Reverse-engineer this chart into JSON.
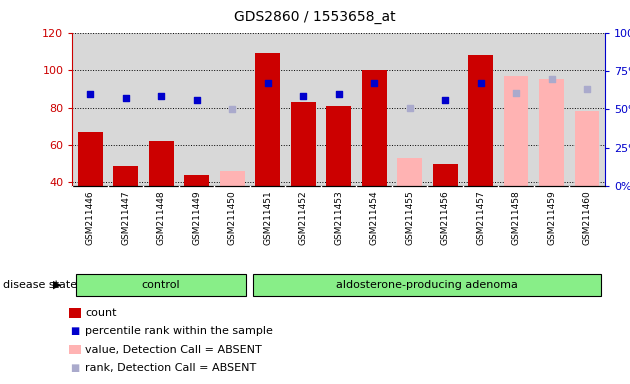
{
  "title": "GDS2860 / 1553658_at",
  "samples": [
    "GSM211446",
    "GSM211447",
    "GSM211448",
    "GSM211449",
    "GSM211450",
    "GSM211451",
    "GSM211452",
    "GSM211453",
    "GSM211454",
    "GSM211455",
    "GSM211456",
    "GSM211457",
    "GSM211458",
    "GSM211459",
    "GSM211460"
  ],
  "count_values": [
    67,
    49,
    62,
    44,
    null,
    109,
    83,
    81,
    100,
    null,
    50,
    108,
    null,
    null,
    null
  ],
  "count_absent": [
    null,
    null,
    null,
    null,
    46,
    null,
    null,
    null,
    null,
    53,
    null,
    null,
    97,
    95,
    78
  ],
  "percentile_rank": [
    87,
    85,
    86,
    84,
    null,
    93,
    86,
    87,
    93,
    null,
    84,
    93,
    null,
    null,
    null
  ],
  "rank_absent": [
    null,
    null,
    null,
    null,
    79,
    null,
    null,
    null,
    null,
    80,
    null,
    null,
    88,
    95,
    90
  ],
  "ylim_left": [
    38,
    120
  ],
  "ylim_right": [
    0,
    100
  ],
  "yticks_left": [
    40,
    60,
    80,
    100,
    120
  ],
  "yticks_right": [
    0,
    25,
    50,
    75,
    100
  ],
  "bar_color_red": "#cc0000",
  "bar_color_pink": "#ffb3b3",
  "dot_color_blue": "#0000cc",
  "dot_color_lightblue": "#aaaacc",
  "group_color": "#88ee88",
  "left_axis_color": "#cc0000",
  "right_axis_color": "#0000cc",
  "legend_items": [
    "count",
    "percentile rank within the sample",
    "value, Detection Call = ABSENT",
    "rank, Detection Call = ABSENT"
  ],
  "legend_colors": [
    "#cc0000",
    "#0000cc",
    "#ffb3b3",
    "#aaaacc"
  ],
  "axis_bg": "#d8d8d8"
}
